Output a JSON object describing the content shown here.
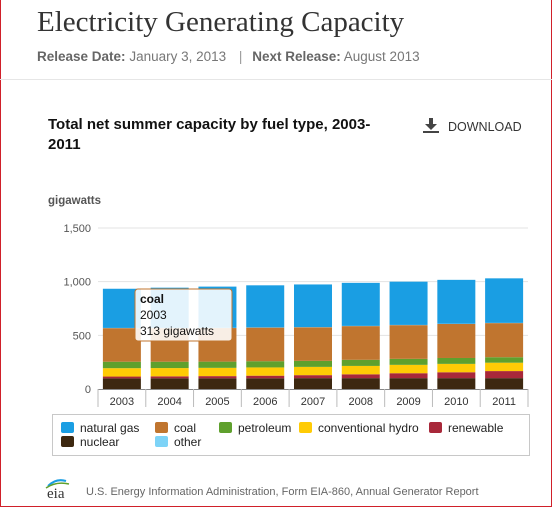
{
  "page": {
    "title": "Electricity Generating Capacity",
    "release_label": "Release Date:",
    "release_date": "January 3, 2013",
    "separator": "|",
    "next_label": "Next Release:",
    "next_date": "August 2013"
  },
  "download_label": "DOWNLOAD",
  "logo_text": "eia",
  "footer_text": "U.S. Energy Information Administration, Form EIA-860, Annual Generator Report",
  "legend": [
    {
      "name": "natural gas",
      "color": "#1a9ee3"
    },
    {
      "name": "coal",
      "color": "#c0752f"
    },
    {
      "name": "petroleum",
      "color": "#5fa02d"
    },
    {
      "name": "conventional hydro",
      "color": "#ffcb05"
    },
    {
      "name": "renewable",
      "color": "#a8283a"
    },
    {
      "name": "nuclear",
      "color": "#3d2810"
    },
    {
      "name": "other",
      "color": "#7dd3f7"
    }
  ],
  "tooltip": {
    "series": "coal",
    "year": "2003",
    "value": "313 gigawatts"
  },
  "chart_data": {
    "type": "bar",
    "stacked": true,
    "title": "Total net summer capacity by fuel type, 2003-2011",
    "ylabel": "gigawatts",
    "ylim": [
      0,
      1500
    ],
    "yticks": [
      "0",
      "500",
      "1,000",
      "1,500"
    ],
    "grid": true,
    "categories": [
      "2003",
      "2004",
      "2005",
      "2006",
      "2007",
      "2008",
      "2009",
      "2010",
      "2011"
    ],
    "series": [
      {
        "name": "nuclear",
        "color": "#3d2810",
        "values": [
          99,
          100,
          100,
          100,
          101,
          101,
          101,
          101,
          101
        ]
      },
      {
        "name": "renewable",
        "color": "#a8283a",
        "values": [
          17,
          18,
          20,
          24,
          28,
          36,
          46,
          55,
          66
        ]
      },
      {
        "name": "conventional hydro",
        "color": "#ffcb05",
        "values": [
          78,
          77,
          77,
          77,
          77,
          78,
          78,
          78,
          78
        ]
      },
      {
        "name": "petroleum",
        "color": "#5fa02d",
        "values": [
          60,
          59,
          58,
          58,
          56,
          57,
          56,
          55,
          51
        ]
      },
      {
        "name": "coal",
        "color": "#c0752f",
        "values": [
          313,
          313,
          313,
          313,
          313,
          314,
          314,
          317,
          318
        ]
      },
      {
        "name": "other",
        "color": "#7dd3f7",
        "values": [
          2,
          2,
          2,
          2,
          2,
          2,
          2,
          2,
          2
        ]
      },
      {
        "name": "natural gas",
        "color": "#1a9ee3",
        "values": [
          365,
          375,
          384,
          392,
          397,
          401,
          403,
          409,
          415
        ]
      }
    ]
  }
}
